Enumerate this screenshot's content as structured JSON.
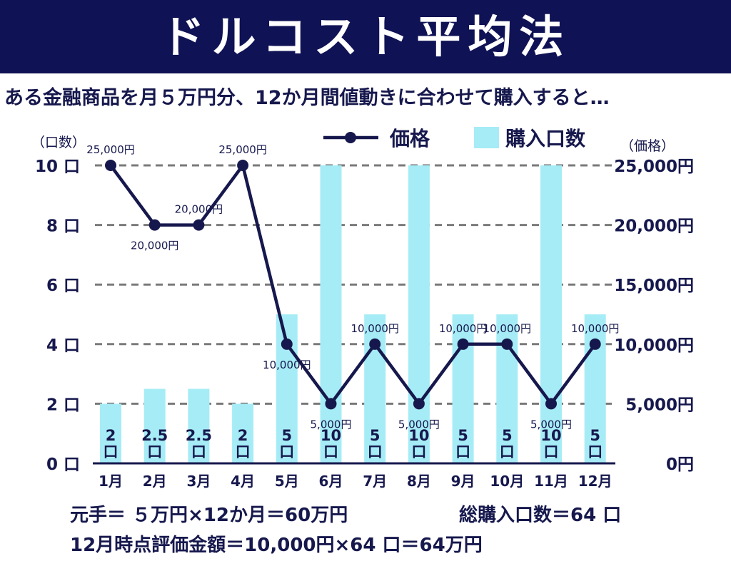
{
  "title": "ドルコスト平均法",
  "subtitle": "ある金融商品を月５万円分、12か月間値動きに合わせて購入すると…",
  "footer": {
    "line1a": "元手＝ ５万円×12か月＝60万円",
    "line1b": "総購入口数＝64 口",
    "line2": "12月時点評価金額＝10,000円×64 口＝64万円"
  },
  "colors": {
    "banner": "#0f1254",
    "line": "#16184d",
    "bar": "#a6ecf6",
    "grid": "#7a7a7a"
  },
  "chart_data": {
    "type": "bar+line",
    "categories": [
      "1月",
      "2月",
      "3月",
      "4月",
      "5月",
      "6月",
      "7月",
      "8月",
      "9月",
      "10月",
      "11月",
      "12月"
    ],
    "left_axis": {
      "label": "（口数）",
      "ylim": [
        0,
        10
      ],
      "ticks": [
        0,
        2,
        4,
        6,
        8,
        10
      ],
      "tick_labels": [
        "0 口",
        "2 口",
        "4 口",
        "6 口",
        "8 口",
        "10 口"
      ]
    },
    "right_axis": {
      "label": "（価格）",
      "ylim": [
        0,
        25000
      ],
      "ticks": [
        0,
        5000,
        10000,
        15000,
        20000,
        25000
      ],
      "tick_labels": [
        "0円",
        "5,000円",
        "10,000円",
        "15,000円",
        "20,000円",
        "25,000円"
      ]
    },
    "grid": true,
    "legend": {
      "placement": "top-center",
      "line_label": "価格",
      "bar_label": "購入口数"
    },
    "series": [
      {
        "name": "購入口数",
        "type": "bar",
        "axis": "left",
        "values": [
          2,
          2.5,
          2.5,
          2,
          5,
          10,
          5,
          10,
          5,
          5,
          10,
          5
        ],
        "bar_labels_top": [
          "2",
          "2.5",
          "2.5",
          "2",
          "5",
          "10",
          "5",
          "10",
          "5",
          "5",
          "10",
          "5"
        ],
        "bar_labels_unit": "口"
      },
      {
        "name": "価格",
        "type": "line",
        "axis": "right",
        "values": [
          25000,
          20000,
          20000,
          25000,
          10000,
          5000,
          10000,
          5000,
          10000,
          10000,
          5000,
          10000
        ],
        "point_labels": [
          "25,000円",
          "20,000円",
          "20,000円",
          "25,000円",
          "10,000円",
          "5,000円",
          "10,000円",
          "5,000円",
          "10,000円",
          "10,000円",
          "5,000円",
          "10,000円"
        ]
      }
    ]
  }
}
